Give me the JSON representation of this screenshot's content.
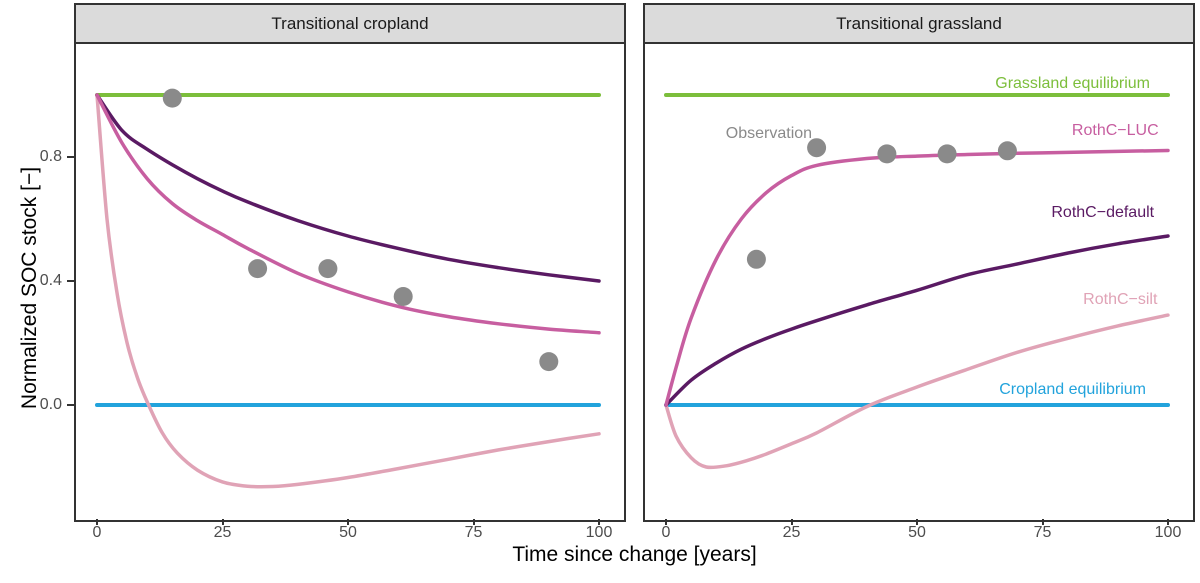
{
  "figure": {
    "y_axis": {
      "title": "Normalized SOC stock [−]",
      "tick_labels": [
        "0.8",
        "0.4",
        "0.0"
      ],
      "tick_values": [
        0.8,
        0.4,
        0.0
      ]
    },
    "x_axis": {
      "title": "Time since change [years]",
      "tick_labels": [
        "0",
        "25",
        "50",
        "75",
        "100"
      ],
      "tick_values": [
        0,
        25,
        50,
        75,
        100
      ]
    }
  },
  "colors": {
    "grassland_equilibrium": "#7cbe3b",
    "cropland_equilibrium": "#22a3dc",
    "rothc_luc": "#c75ea0",
    "rothc_default": "#5a1a63",
    "rothc_silt": "#e0a3b6",
    "observation": "#8a8a8a",
    "axis_text": "#4d4d4d",
    "strip_bg": "#dbdbdb",
    "border": "#333333"
  },
  "chart_data": [
    {
      "type": "line",
      "title": "Transitional cropland",
      "xlabel": "Time since change [years]",
      "ylabel": "Normalized SOC stock [-]",
      "xlim": [
        0,
        100
      ],
      "x_ticks": [
        0,
        25,
        50,
        75,
        100
      ],
      "y_ticks": [
        0.0,
        0.4,
        0.8
      ],
      "grid": false,
      "legend_position": "none",
      "series": [
        {
          "name": "Grassland equilibrium",
          "role": "equilibrium-line",
          "color": "grassland_equilibrium",
          "x": [
            0,
            100
          ],
          "y": [
            1.0,
            1.0
          ]
        },
        {
          "name": "Cropland equilibrium",
          "role": "equilibrium-line",
          "color": "cropland_equilibrium",
          "x": [
            0,
            100
          ],
          "y": [
            0.0,
            0.0
          ]
        },
        {
          "name": "RothC-silt",
          "role": "model-line",
          "color": "rothc_silt",
          "x": [
            0,
            2,
            4,
            6,
            8,
            10,
            13,
            16,
            20,
            25,
            30,
            35,
            40,
            50,
            60,
            70,
            80,
            90,
            100
          ],
          "y": [
            1.0,
            0.6,
            0.36,
            0.2,
            0.09,
            0.01,
            -0.09,
            -0.155,
            -0.21,
            -0.248,
            -0.262,
            -0.263,
            -0.256,
            -0.234,
            -0.205,
            -0.175,
            -0.145,
            -0.118,
            -0.093
          ]
        },
        {
          "name": "RothC-default",
          "role": "model-line",
          "color": "rothc_default",
          "x": [
            0,
            5,
            10,
            15,
            20,
            25,
            30,
            40,
            50,
            60,
            70,
            80,
            90,
            100
          ],
          "y": [
            1.0,
            0.885,
            0.825,
            0.775,
            0.73,
            0.69,
            0.655,
            0.595,
            0.545,
            0.505,
            0.47,
            0.443,
            0.42,
            0.4
          ]
        },
        {
          "name": "RothC-LUC",
          "role": "model-line",
          "color": "rothc_luc",
          "x": [
            0,
            5,
            10,
            15,
            20,
            25,
            30,
            40,
            50,
            60,
            70,
            80,
            90,
            100
          ],
          "y": [
            1.0,
            0.845,
            0.73,
            0.65,
            0.595,
            0.55,
            0.505,
            0.425,
            0.365,
            0.318,
            0.285,
            0.262,
            0.245,
            0.233
          ]
        },
        {
          "name": "Observation",
          "role": "observations",
          "color": "observation",
          "x": [
            15,
            32,
            46,
            61,
            90
          ],
          "y": [
            0.99,
            0.44,
            0.44,
            0.35,
            0.14
          ]
        }
      ]
    },
    {
      "type": "line",
      "title": "Transitional grassland",
      "xlabel": "Time since change [years]",
      "ylabel": "Normalized SOC stock [-]",
      "xlim": [
        0,
        100
      ],
      "x_ticks": [
        0,
        25,
        50,
        75,
        100
      ],
      "y_ticks": [
        0.0,
        0.4,
        0.8
      ],
      "grid": false,
      "legend_position": "inline-labels",
      "series": [
        {
          "name": "Grassland equilibrium",
          "role": "equilibrium-line",
          "color": "grassland_equilibrium",
          "x": [
            0,
            100
          ],
          "y": [
            1.0,
            1.0
          ]
        },
        {
          "name": "Cropland equilibrium",
          "role": "equilibrium-line",
          "color": "cropland_equilibrium",
          "x": [
            0,
            100
          ],
          "y": [
            0.0,
            0.0
          ]
        },
        {
          "name": "RothC-silt",
          "role": "model-line",
          "color": "rothc_silt",
          "x": [
            0,
            2,
            5,
            8,
            12,
            16,
            20,
            25,
            30,
            40,
            50,
            60,
            70,
            80,
            90,
            100
          ],
          "y": [
            0,
            -0.1,
            -0.17,
            -0.2,
            -0.196,
            -0.18,
            -0.158,
            -0.125,
            -0.09,
            -0.005,
            0.058,
            0.115,
            0.17,
            0.215,
            0.255,
            0.29
          ]
        },
        {
          "name": "RothC-default",
          "role": "model-line",
          "color": "rothc_default",
          "x": [
            0,
            5,
            10,
            15,
            20,
            25,
            30,
            40,
            50,
            60,
            70,
            80,
            90,
            100
          ],
          "y": [
            0,
            0.08,
            0.135,
            0.18,
            0.215,
            0.245,
            0.272,
            0.323,
            0.37,
            0.42,
            0.455,
            0.49,
            0.52,
            0.545
          ]
        },
        {
          "name": "RothC-LUC",
          "role": "model-line",
          "color": "rothc_luc",
          "x": [
            0,
            2,
            5,
            10,
            15,
            20,
            25,
            30,
            40,
            50,
            60,
            70,
            80,
            90,
            100
          ],
          "y": [
            0,
            0.12,
            0.28,
            0.47,
            0.6,
            0.685,
            0.74,
            0.773,
            0.795,
            0.803,
            0.808,
            0.812,
            0.815,
            0.818,
            0.821
          ]
        },
        {
          "name": "Observation",
          "role": "observations",
          "color": "observation",
          "x": [
            18,
            30,
            44,
            56,
            68
          ],
          "y": [
            0.47,
            0.83,
            0.81,
            0.81,
            0.82
          ]
        }
      ]
    }
  ],
  "annotations": [
    {
      "text": "Grassland equilibrium",
      "color": "grassland_equilibrium",
      "panel": 1,
      "t": 81,
      "v": 1.035
    },
    {
      "text": "Observation",
      "color": "observation",
      "panel": 1,
      "t": 20.5,
      "v": 0.875
    },
    {
      "text": "RothC−LUC",
      "color": "rothc_luc",
      "panel": 1,
      "t": 89.5,
      "v": 0.885
    },
    {
      "text": "RothC−default",
      "color": "rothc_default",
      "panel": 1,
      "t": 87,
      "v": 0.62
    },
    {
      "text": "RothC−silt",
      "color": "rothc_silt",
      "panel": 1,
      "t": 90.5,
      "v": 0.34
    },
    {
      "text": "Cropland equilibrium",
      "color": "cropland_equilibrium",
      "panel": 1,
      "t": 81,
      "v": 0.047
    }
  ]
}
